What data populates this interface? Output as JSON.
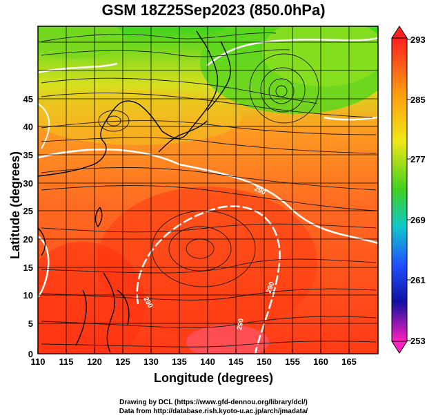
{
  "title": "GSM 18Z25Sep2023 (850.0hPa)",
  "xlabel": "Longitude (degrees)",
  "ylabel": "Latitude  (degrees)",
  "x_ticks": [
    "110",
    "115",
    "120",
    "125",
    "130",
    "135",
    "140",
    "145",
    "150",
    "155",
    "160",
    "165"
  ],
  "y_ticks": [
    "0",
    "5",
    "10",
    "15",
    "20",
    "25",
    "30",
    "35",
    "40",
    "45"
  ],
  "colorbar_ticks": [
    "293",
    "285",
    "277",
    "269",
    "261",
    "253"
  ],
  "contour_labels": [
    "290",
    "290",
    "290",
    "290"
  ],
  "credits": {
    "line1": "Drawing by DCL (https://www.gfd-dennou.org/library/dcl/)",
    "line2": "Data from http://database.rish.kyoto-u.ac.jp/arch/jmadata/"
  },
  "colors": {
    "warm": "#ff4a1a",
    "mid": "#ff9a1a",
    "yellow": "#f0e020",
    "green": "#4fd41a",
    "land_outline": "#000000"
  },
  "map_extent": {
    "lon": [
      110,
      170
    ],
    "lat": [
      0,
      50
    ]
  }
}
